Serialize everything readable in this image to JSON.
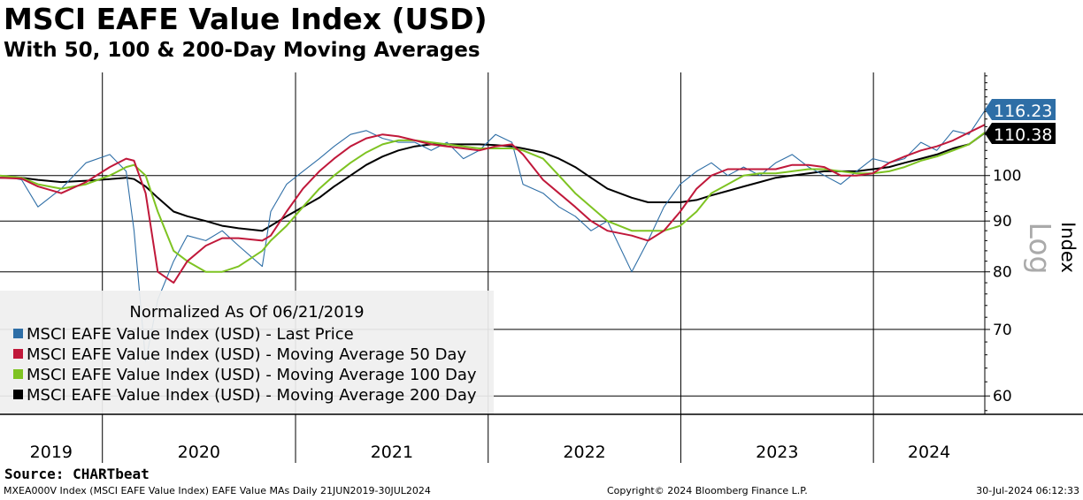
{
  "header": {
    "title": "MSCI EAFE Value Index (USD)",
    "subtitle": "With 50, 100 & 200-Day Moving Averages"
  },
  "footer": {
    "source": "Source: CHARTbeat",
    "description": "MXEA000V Index (MSCI EAFE Value Index) EAFE Value MAs  Daily 21JUN2019-30JUL2024",
    "copyright": "Copyright© 2024 Bloomberg Finance L.P.",
    "timestamp": "30-Jul-2024 06:12:33"
  },
  "colors": {
    "last_price": "#2e6ea6",
    "ma50": "#c0183a",
    "ma100": "#7ec322",
    "ma200": "#000000"
  },
  "chart_data": {
    "type": "line",
    "title": "MSCI EAFE Value Index (USD)",
    "subtitle": "With 50, 100 & 200-Day Moving Averages",
    "ylabel": "Index",
    "yscale_label": "Log",
    "yscale": "log",
    "ylim": [
      57.5,
      127
    ],
    "yticks": [
      60,
      70,
      80,
      90,
      100
    ],
    "xlim": [
      "2019-06-21",
      "2024-07-30"
    ],
    "x_labels": [
      "2019",
      "2020",
      "2021",
      "2022",
      "2023",
      "2024"
    ],
    "grid": true,
    "legend_position": "bottom-left",
    "legend_title": "Normalized As Of 06/21/2019",
    "last_values": {
      "last_price": "116.23",
      "ma200": "110.38"
    },
    "x": [
      "2019-06-21",
      "2019-08-01",
      "2019-09-01",
      "2019-10-15",
      "2019-12-01",
      "2020-01-15",
      "2020-02-15",
      "2020-03-01",
      "2020-03-23",
      "2020-04-15",
      "2020-05-15",
      "2020-06-10",
      "2020-07-15",
      "2020-08-15",
      "2020-09-15",
      "2020-10-30",
      "2020-11-15",
      "2020-12-15",
      "2021-01-15",
      "2021-02-15",
      "2021-03-15",
      "2021-04-15",
      "2021-05-15",
      "2021-06-15",
      "2021-07-15",
      "2021-08-15",
      "2021-09-15",
      "2021-10-15",
      "2021-11-15",
      "2021-12-15",
      "2022-01-15",
      "2022-02-15",
      "2022-03-08",
      "2022-04-15",
      "2022-05-15",
      "2022-06-15",
      "2022-07-15",
      "2022-08-15",
      "2022-09-30",
      "2022-10-31",
      "2022-11-30",
      "2022-12-31",
      "2023-01-31",
      "2023-02-28",
      "2023-03-31",
      "2023-04-30",
      "2023-05-31",
      "2023-06-30",
      "2023-07-31",
      "2023-08-31",
      "2023-09-30",
      "2023-10-31",
      "2023-11-30",
      "2023-12-31",
      "2024-01-31",
      "2024-02-29",
      "2024-03-31",
      "2024-04-30",
      "2024-05-31",
      "2024-06-30",
      "2024-07-30"
    ],
    "series": [
      {
        "name": "MSCI EAFE Value Index (USD) - Last Price",
        "key": "last_price",
        "values": [
          100,
          99,
          93,
          97,
          103,
          105,
          101,
          88,
          65,
          75,
          82,
          87,
          86,
          88,
          85,
          81,
          92,
          98,
          101,
          104,
          107,
          110,
          111,
          109,
          108,
          108,
          106,
          108,
          104,
          106,
          110,
          108,
          98,
          96,
          93,
          91,
          88,
          90,
          80,
          86,
          93,
          98,
          101,
          103,
          100,
          102,
          100,
          103,
          105,
          102,
          100,
          98,
          101,
          104,
          103,
          104,
          108,
          106,
          111,
          110,
          116.23
        ]
      },
      {
        "name": "MSCI EAFE Value Index (USD) - Moving Average 50 Day",
        "key": "ma50",
        "values": [
          99.5,
          99.3,
          97.5,
          96,
          98.5,
          102,
          104,
          103.5,
          96,
          80,
          78,
          82,
          85,
          86.5,
          86.5,
          86,
          87,
          92,
          97,
          101,
          104,
          107,
          109,
          110,
          109.5,
          108.5,
          107.5,
          107,
          106.5,
          106,
          107,
          107.5,
          105,
          99,
          96,
          93,
          90,
          88,
          87,
          86,
          88,
          92,
          97,
          100,
          101.5,
          101.5,
          101.5,
          101.5,
          102.5,
          102.5,
          102,
          100,
          100,
          100.5,
          103,
          104.5,
          106,
          107,
          108.5,
          110.5,
          112.5
        ]
      },
      {
        "name": "MSCI EAFE Value Index (USD) - Moving Average 100 Day",
        "key": "ma100",
        "values": [
          100,
          99.5,
          98,
          97,
          98,
          100,
          102,
          102.5,
          100,
          92,
          84,
          82,
          80,
          80,
          81,
          84,
          86,
          89,
          93,
          97,
          100,
          103,
          105.5,
          107.5,
          108.5,
          108.5,
          108,
          107.5,
          107,
          106.5,
          106.5,
          106.5,
          106,
          104,
          100,
          96,
          93,
          90,
          88,
          88,
          88,
          89,
          92,
          96,
          98,
          100,
          100.5,
          100.5,
          101,
          101.5,
          101.5,
          101,
          100.5,
          100.5,
          101,
          102,
          103.5,
          104.5,
          106,
          107.5,
          110.5
        ]
      },
      {
        "name": "MSCI EAFE Value Index (USD) - Moving Average 200 Day",
        "key": "ma200",
        "values": [
          99.5,
          99.5,
          99,
          98.5,
          98.8,
          99.2,
          99.5,
          99.2,
          97.5,
          95,
          92,
          91,
          90,
          89,
          88.5,
          88,
          89,
          91,
          93,
          95,
          97.5,
          100,
          102.5,
          104.5,
          106,
          107,
          107.5,
          107.5,
          107.5,
          107.5,
          107.3,
          107,
          106.5,
          105.5,
          104,
          102,
          99.5,
          97,
          95,
          94,
          94,
          94,
          94.5,
          95.5,
          96.5,
          97.5,
          98.5,
          99.5,
          100,
          100.5,
          101,
          101,
          101,
          101.5,
          102,
          103,
          104,
          105,
          106.5,
          107.5,
          110.38
        ]
      }
    ]
  }
}
